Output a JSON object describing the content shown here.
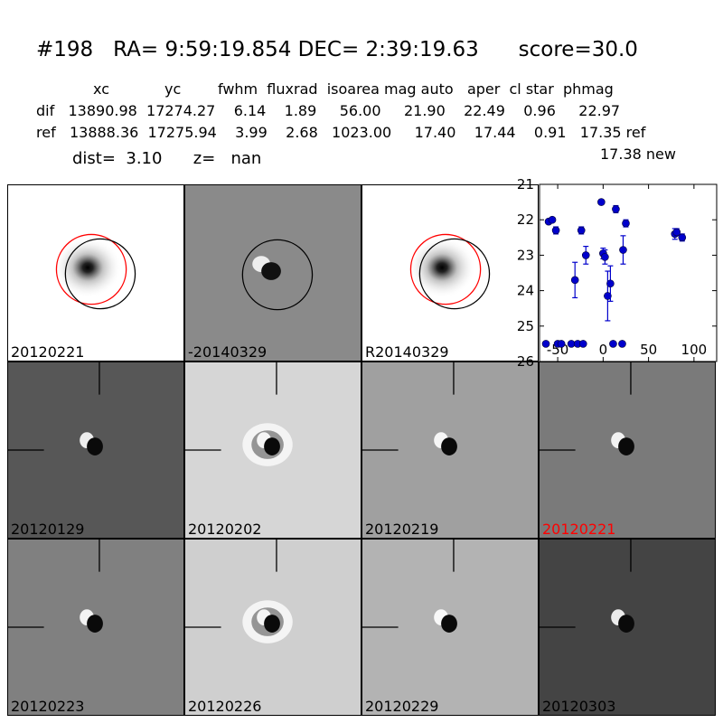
{
  "title": "#198   RA= 9:59:19.854 DEC= 2:39:19.63      score=30.0",
  "table": {
    "header": "xc            yc        fwhm  fluxrad  isoarea mag auto   aper  cl star  phmag",
    "dif_row": "dif   13890.98  17274.27    6.14    1.89     56.00     21.90    22.49    0.96     22.97",
    "ref_row": "ref   13888.36  17275.94    3.99    2.68   1023.00     17.40    17.44    0.91   17.35 ref",
    "new_line": "17.38 new"
  },
  "dist_line": "dist=  3.10      z=   nan",
  "top_panels": [
    {
      "label": "20120221",
      "bg": "#ffffff",
      "kind": "ref"
    },
    {
      "label": "-20140329",
      "bg": "#8a8a8a",
      "kind": "diff"
    },
    {
      "label": "R20140329",
      "bg": "#ffffff",
      "kind": "ref"
    }
  ],
  "stamps": [
    {
      "label": "20120129",
      "bg": "#575757",
      "label_color": "#000000"
    },
    {
      "label": "20120202",
      "bg": "#d6d6d6",
      "label_color": "#000000"
    },
    {
      "label": "20120219",
      "bg": "#a0a0a0",
      "label_color": "#000000"
    },
    {
      "label": "20120221",
      "bg": "#7a7a7a",
      "label_color": "#ff0000"
    },
    {
      "label": "20120223",
      "bg": "#808080",
      "label_color": "#000000"
    },
    {
      "label": "20120226",
      "bg": "#cfcfcf",
      "label_color": "#000000"
    },
    {
      "label": "20120229",
      "bg": "#b3b3b3",
      "label_color": "#000000"
    },
    {
      "label": "20120303",
      "bg": "#444444",
      "label_color": "#000000"
    }
  ],
  "chart_data": {
    "type": "scatter",
    "title": "",
    "xlabel": "",
    "ylabel": "",
    "xlim": [
      -70,
      125
    ],
    "ylim": [
      26,
      21
    ],
    "xticks": [
      -50,
      0,
      50,
      100
    ],
    "yticks": [
      21,
      22,
      23,
      24,
      25,
      26
    ],
    "color": "#0000cc",
    "points": [
      {
        "x": -63,
        "y": 25.5,
        "err": 0
      },
      {
        "x": -60,
        "y": 22.05,
        "err": 0.05
      },
      {
        "x": -56,
        "y": 22.0,
        "err": 0.05
      },
      {
        "x": -52,
        "y": 22.3,
        "err": 0.1
      },
      {
        "x": -50,
        "y": 25.5,
        "err": 0
      },
      {
        "x": -46,
        "y": 25.5,
        "err": 0
      },
      {
        "x": -35,
        "y": 25.5,
        "err": 0
      },
      {
        "x": -31,
        "y": 23.7,
        "err": 0.5
      },
      {
        "x": -28,
        "y": 25.5,
        "err": 0
      },
      {
        "x": -24,
        "y": 22.3,
        "err": 0.1
      },
      {
        "x": -22,
        "y": 25.5,
        "err": 0
      },
      {
        "x": -19,
        "y": 23.0,
        "err": 0.25
      },
      {
        "x": -2,
        "y": 21.5,
        "err": 0.05
      },
      {
        "x": 0,
        "y": 22.95,
        "err": 0.15
      },
      {
        "x": 2,
        "y": 23.05,
        "err": 0.2
      },
      {
        "x": 5,
        "y": 24.15,
        "err": 0.7
      },
      {
        "x": 8,
        "y": 23.8,
        "err": 0.5
      },
      {
        "x": 11,
        "y": 25.5,
        "err": 0
      },
      {
        "x": 14,
        "y": 21.7,
        "err": 0.1
      },
      {
        "x": 21,
        "y": 25.5,
        "err": 0
      },
      {
        "x": 22,
        "y": 22.85,
        "err": 0.4
      },
      {
        "x": 25,
        "y": 22.1,
        "err": 0.1
      },
      {
        "x": 79,
        "y": 22.4,
        "err": 0.15
      },
      {
        "x": 81,
        "y": 22.35,
        "err": 0.1
      },
      {
        "x": 87,
        "y": 22.5,
        "err": 0.1
      }
    ]
  }
}
